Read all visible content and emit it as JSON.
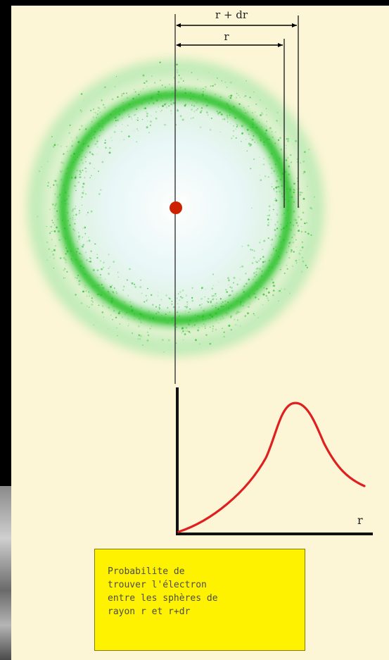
{
  "labels": {
    "r_plus_dr": "r + dr",
    "r": "r",
    "axis_r": "r"
  },
  "caption": {
    "lines": [
      "Probabilite de",
      "trouver l'électron",
      "entre les sphères de",
      "rayon r et r+dr"
    ]
  },
  "colors": {
    "panel": "#fcf6d6",
    "shell": "#22c022",
    "nucleus": "#cc2200",
    "curve": "#e02020",
    "caption_bg": "#fff200"
  },
  "icons": {
    "nucleus": "nucleus-dot-icon",
    "arrows": "dimension-arrow-icon"
  }
}
